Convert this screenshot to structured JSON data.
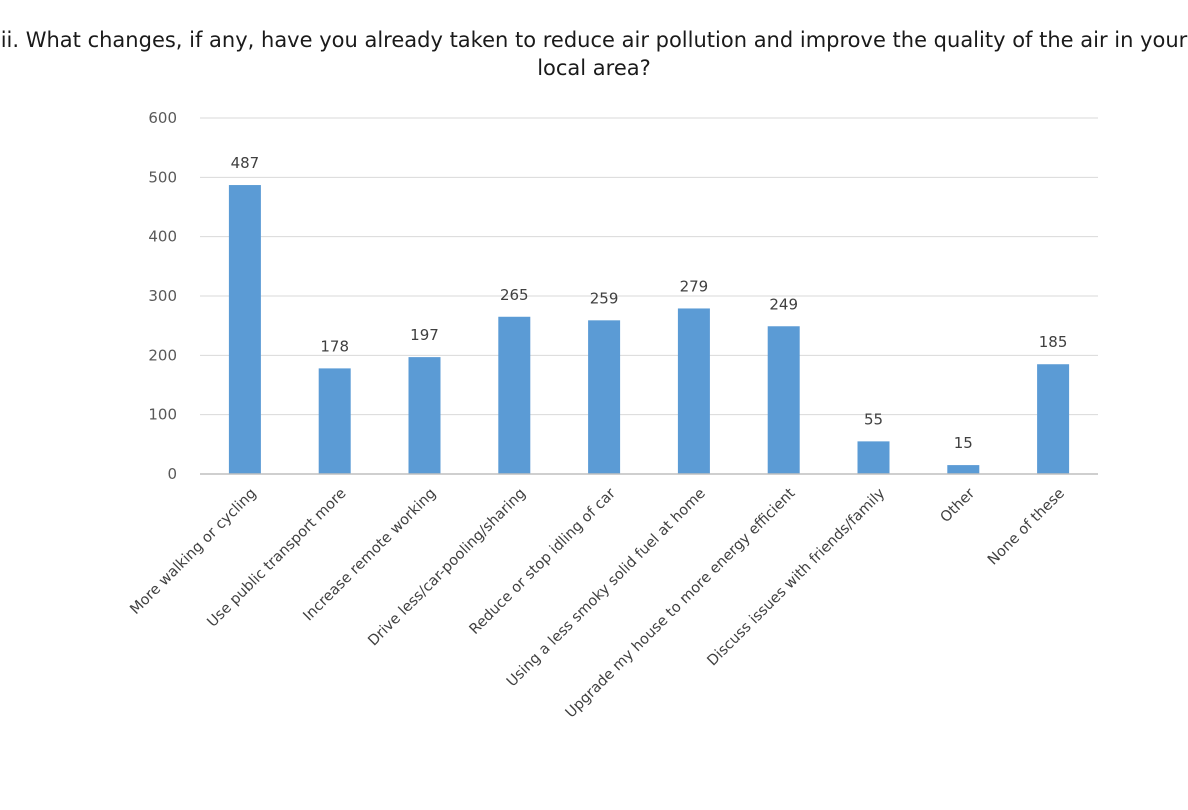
{
  "chart_data": {
    "type": "bar",
    "title": "ii. What changes, if any, have you already taken to reduce air pollution and improve the quality of the air in your local area?",
    "categories": [
      "More walking or cycling",
      "Use public transport more",
      "Increase remote working",
      "Drive less/car-pooling/sharing",
      "Reduce or stop idling of car",
      "Using a less smoky solid fuel at home",
      "Upgrade my house to more energy efficient",
      "Discuss issues with friends/family",
      "Other",
      "None of these"
    ],
    "values": [
      487,
      178,
      197,
      265,
      259,
      279,
      249,
      55,
      15,
      185
    ],
    "data_labels": [
      "487",
      "178",
      "197",
      "265",
      "259",
      "279",
      "249",
      "55",
      "15",
      "185"
    ],
    "y_ticks": [
      "0",
      "100",
      "200",
      "300",
      "400",
      "500",
      "600"
    ],
    "ylim": [
      0,
      600
    ],
    "xlabel": "",
    "ylabel": "",
    "grid": true,
    "legend": "none",
    "bar_color": "#5b9bd5"
  }
}
